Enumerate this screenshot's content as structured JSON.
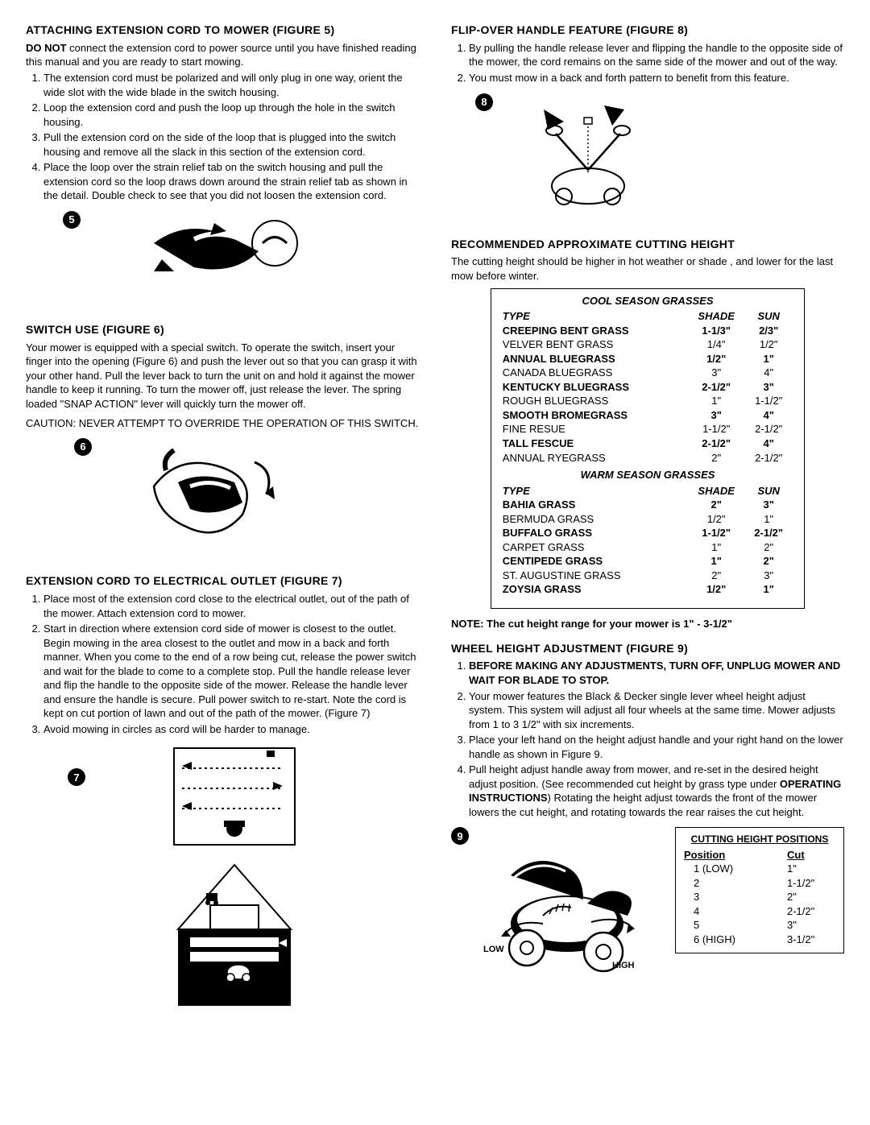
{
  "left": {
    "sec1": {
      "title": "ATTACHING EXTENSION CORD TO MOWER (FIGURE 5)",
      "intro_bold": "DO NOT",
      "intro_rest": " connect the extension cord to power source until you have finished reading this manual and you are ready to start mowing.",
      "items": [
        "The extension cord must be polarized and will only plug in one way,  orient the wide slot with the wide blade in the switch housing.",
        "Loop the extension cord and push the loop up through the hole in the switch housing.",
        "Pull the extension cord on the side of the loop that is plugged into the switch housing and remove all the slack in this section of the extension cord.",
        "Place the loop over the strain relief tab on the switch housing and pull the extension cord so the loop draws down around the strain relief tab as shown in the detail. Double check to see that you did not loosen the extension cord."
      ],
      "fig": "5"
    },
    "sec2": {
      "title": "SWITCH USE (FIGURE 6)",
      "para": "Your mower is equipped with a special switch. To operate the switch, insert your finger into the opening (Figure 6) and push the lever out so that you can grasp it with your other hand.  Pull the lever back to turn the unit on and hold it against the mower handle to keep it running.  To turn the mower off, just release the lever. The spring loaded \"SNAP ACTION\" lever will quickly turn the mower off.",
      "caution": "CAUTION: NEVER ATTEMPT TO OVERRIDE THE OPERATION OF THIS SWITCH.",
      "fig": "6"
    },
    "sec3": {
      "title": "EXTENSION CORD TO ELECTRICAL OUTLET (FIGURE 7)",
      "items": [
        "Place most of the extension cord close to the electrical outlet, out of the path of the mower. Attach extension cord to mower.",
        "Start in direction where extension cord side of mower is closest to the outlet. Begin mowing in the area closest to the outlet and mow in a back and forth manner.  When you come to the end of a row being cut, release the power switch and wait for the blade to come to a complete stop.  Pull the handle release lever and flip the handle to the opposite side of the mower.  Release the handle lever and ensure the handle is secure. Pull power switch to re-start. Note the cord is kept on cut portion of lawn and out of the path of the  mower. (Figure 7)",
        "Avoid mowing in circles as cord will be harder to manage."
      ],
      "fig": "7"
    }
  },
  "right": {
    "sec4": {
      "title": "FLIP-OVER HANDLE FEATURE (FIGURE 8)",
      "items": [
        "By pulling the handle release lever and flipping the handle to the opposite side of the mower, the cord remains on the same side of the mower and out of the way.",
        "You must mow in a back and forth pattern to benefit from this feature."
      ],
      "fig": "8"
    },
    "sec5": {
      "title": "RECOMMENDED APPROXIMATE CUTTING HEIGHT",
      "para": "The cutting height should be higher in hot weather or shade , and lower for the last mow before winter.",
      "table": {
        "cool_header": "COOL SEASON GRASSES",
        "warm_header": "WARM SEASON GRASSES",
        "col_type": "TYPE",
        "col_shade": "SHADE",
        "col_sun": "SUN",
        "cool": [
          {
            "t": "CREEPING BENT GRASS",
            "s": "1-1/3\"",
            "u": "2/3\"",
            "b": true
          },
          {
            "t": "VELVER BENT GRASS",
            "s": "1/4\"",
            "u": "1/2\"",
            "b": false
          },
          {
            "t": "ANNUAL BLUEGRASS",
            "s": "1/2\"",
            "u": "1\"",
            "b": true
          },
          {
            "t": "CANADA BLUEGRASS",
            "s": "3\"",
            "u": "4\"",
            "b": false
          },
          {
            "t": "KENTUCKY BLUEGRASS",
            "s": "2-1/2\"",
            "u": "3\"",
            "b": true
          },
          {
            "t": "ROUGH BLUEGRASS",
            "s": "1\"",
            "u": "1-1/2\"",
            "b": false
          },
          {
            "t": "SMOOTH BROMEGRASS",
            "s": "3\"",
            "u": "4\"",
            "b": true
          },
          {
            "t": "FINE RESUE",
            "s": "1-1/2\"",
            "u": "2-1/2\"",
            "b": false
          },
          {
            "t": "TALL FESCUE",
            "s": "2-1/2\"",
            "u": "4\"",
            "b": true
          },
          {
            "t": "ANNUAL RYEGRASS",
            "s": "2\"",
            "u": "2-1/2\"",
            "b": false
          }
        ],
        "warm": [
          {
            "t": "BAHIA GRASS",
            "s": "2\"",
            "u": "3\"",
            "b": true
          },
          {
            "t": "BERMUDA GRASS",
            "s": "1/2\"",
            "u": "1\"",
            "b": false
          },
          {
            "t": "BUFFALO GRASS",
            "s": "1-1/2\"",
            "u": "2-1/2\"",
            "b": true
          },
          {
            "t": "CARPET GRASS",
            "s": "1\"",
            "u": "2\"",
            "b": false
          },
          {
            "t": "CENTIPEDE GRASS",
            "s": "1\"",
            "u": "2\"",
            "b": true
          },
          {
            "t": "ST. AUGUSTINE GRASS",
            "s": "2\"",
            "u": "3\"",
            "b": false
          },
          {
            "t": "ZOYSIA GRASS",
            "s": "1/2\"",
            "u": "1\"",
            "b": true
          }
        ]
      },
      "note_bold": "NOTE: The cut height range for your mower is",
      "note_rest": "   1\"   -   3-1/2\""
    },
    "sec6": {
      "title": "WHEEL HEIGHT ADJUSTMENT (FIGURE 9)",
      "item1_bold": "BEFORE MAKING ANY ADJUSTMENTS, TURN OFF, UNPLUG MOWER AND WAIT FOR BLADE TO STOP.",
      "item2": "Your mower features the Black & Decker single lever wheel height adjust system. This system will adjust all four wheels at the same time. Mower adjusts from 1 to 3 1/2\" with six increments.",
      "item3": "Place your left hand on the height adjust  handle and your right hand on the lower handle as shown in Figure 9.",
      "item4a": "Pull height adjust handle away from mower, and re-set in the desired height adjust position. (See recommended cut height by grass type under ",
      "item4_bold": "OPERATING INSTRUCTIONS",
      "item4b": ") Rotating the height adjust towards the front of the mower lowers the cut height, and rotating towards the rear raises the cut height.",
      "fig": "9",
      "low": "LOW",
      "high": "HIGH",
      "pos_table": {
        "title": "CUTTING HEIGHT POSITIONS",
        "h1": "Position",
        "h2": "Cut",
        "rows": [
          {
            "p": "1 (LOW)",
            "c": "1\""
          },
          {
            "p": "2",
            "c": "1-1/2\""
          },
          {
            "p": "3",
            "c": "2\""
          },
          {
            "p": "4",
            "c": "2-1/2\""
          },
          {
            "p": "5",
            "c": "3\""
          },
          {
            "p": "6 (HIGH)",
            "c": "3-1/2\""
          }
        ]
      }
    }
  }
}
